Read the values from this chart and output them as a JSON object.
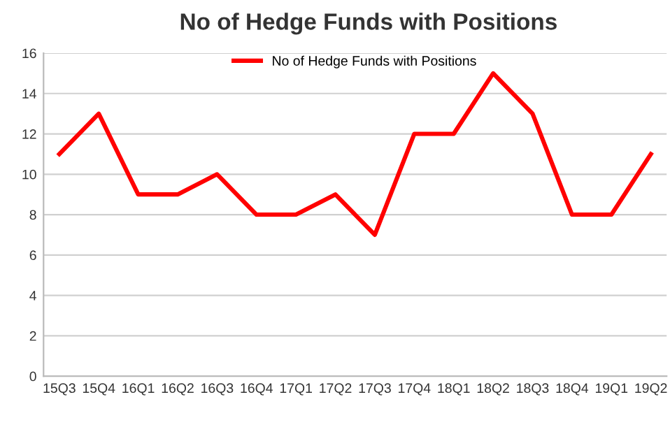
{
  "chart_data": {
    "type": "line",
    "title": "No of Hedge Funds with Positions",
    "categories": [
      "15Q3",
      "15Q4",
      "16Q1",
      "16Q2",
      "16Q3",
      "16Q4",
      "17Q1",
      "17Q2",
      "17Q3",
      "17Q4",
      "18Q1",
      "18Q2",
      "18Q3",
      "18Q4",
      "19Q1",
      "19Q2"
    ],
    "series": [
      {
        "name": "No of Hedge Funds with Positions",
        "color": "#ff0000",
        "values": [
          11,
          13,
          9,
          9,
          10,
          8,
          8,
          9,
          7,
          12,
          12,
          15,
          13,
          8,
          8,
          11
        ]
      }
    ],
    "ylim": [
      0,
      16
    ],
    "yticks": [
      0,
      2,
      4,
      6,
      8,
      10,
      12,
      14,
      16
    ],
    "grid": "y",
    "legend": "top",
    "marker": "none",
    "line_style": "solid"
  }
}
